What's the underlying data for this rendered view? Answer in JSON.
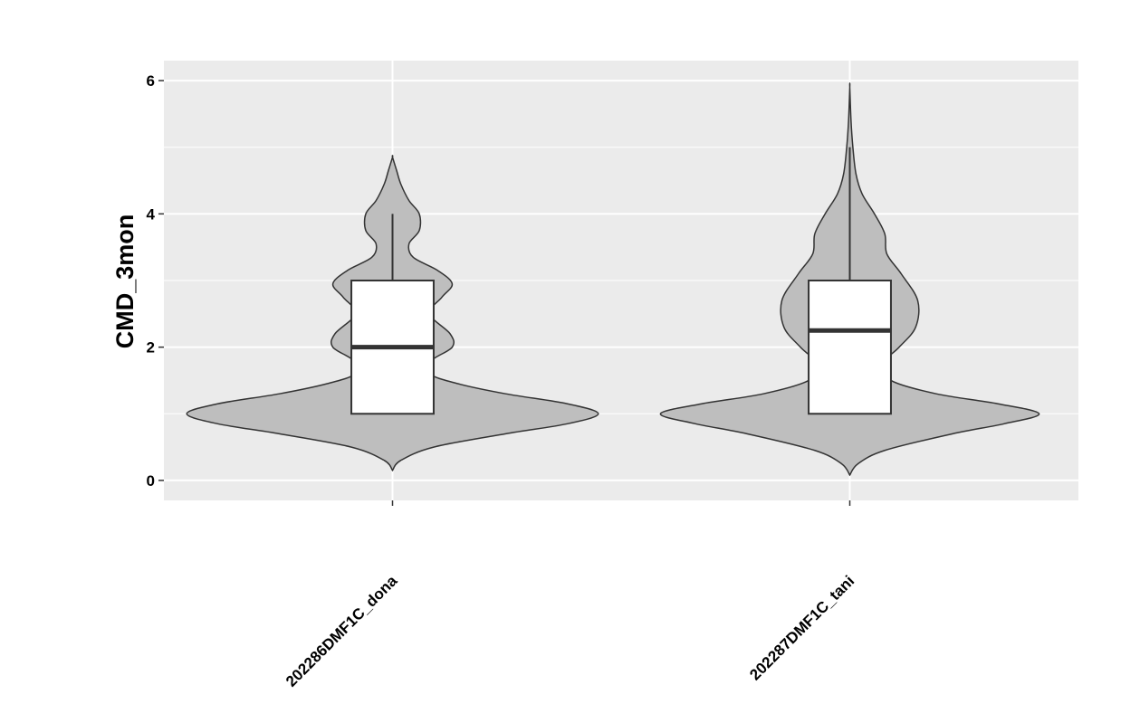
{
  "chart_data": {
    "type": "violin",
    "title": "",
    "xlabel": "",
    "ylabel": "CMD_3mon",
    "ylim": [
      -0.3,
      6.3
    ],
    "yticks": [
      0,
      2,
      4,
      6
    ],
    "grid": true,
    "panel_background": "#ebebeb",
    "grid_color": "#ffffff",
    "violin_fill": "#bebebe",
    "outline_color": "#333333",
    "box_fill": "#ffffff",
    "categories": [
      "202286DMF1C_dona",
      "202287DMF1C_tani"
    ],
    "series": [
      {
        "box": {
          "min": 1,
          "q1": 1,
          "median": 2,
          "q3": 3,
          "max": 4
        },
        "violin": {
          "min": 0.15,
          "max": 4.85,
          "density": [
            [
              0.15,
              0.0
            ],
            [
              0.3,
              0.04
            ],
            [
              0.5,
              0.2
            ],
            [
              0.7,
              0.55
            ],
            [
              0.85,
              0.85
            ],
            [
              1.0,
              1.0
            ],
            [
              1.15,
              0.85
            ],
            [
              1.3,
              0.55
            ],
            [
              1.45,
              0.32
            ],
            [
              1.6,
              0.18
            ],
            [
              1.8,
              0.19
            ],
            [
              2.0,
              0.29
            ],
            [
              2.2,
              0.28
            ],
            [
              2.5,
              0.18
            ],
            [
              2.75,
              0.24
            ],
            [
              2.95,
              0.29
            ],
            [
              3.15,
              0.22
            ],
            [
              3.35,
              0.1
            ],
            [
              3.55,
              0.08
            ],
            [
              3.75,
              0.13
            ],
            [
              4.0,
              0.13
            ],
            [
              4.2,
              0.08
            ],
            [
              4.45,
              0.04
            ],
            [
              4.65,
              0.02
            ],
            [
              4.85,
              0.0
            ]
          ]
        }
      },
      {
        "box": {
          "min": 1,
          "q1": 1,
          "median": 2.25,
          "q3": 3,
          "max": 5
        },
        "violin": {
          "min": 0.08,
          "max": 5.9,
          "density": [
            [
              0.08,
              0.0
            ],
            [
              0.25,
              0.04
            ],
            [
              0.45,
              0.17
            ],
            [
              0.7,
              0.5
            ],
            [
              0.85,
              0.75
            ],
            [
              1.0,
              0.92
            ],
            [
              1.15,
              0.72
            ],
            [
              1.3,
              0.42
            ],
            [
              1.5,
              0.2
            ],
            [
              1.75,
              0.16
            ],
            [
              2.0,
              0.24
            ],
            [
              2.3,
              0.32
            ],
            [
              2.7,
              0.33
            ],
            [
              3.1,
              0.25
            ],
            [
              3.4,
              0.18
            ],
            [
              3.7,
              0.17
            ],
            [
              4.0,
              0.12
            ],
            [
              4.3,
              0.06
            ],
            [
              4.6,
              0.03
            ],
            [
              5.0,
              0.015
            ],
            [
              5.4,
              0.006
            ],
            [
              5.9,
              0.0
            ]
          ]
        }
      }
    ]
  }
}
